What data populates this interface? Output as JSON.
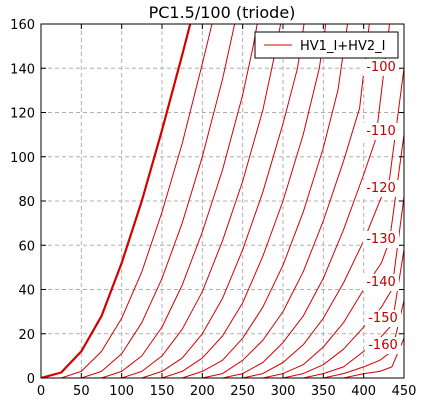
{
  "chart_data": {
    "type": "line",
    "title": "PC1.5/100 (triode)",
    "xlim": [
      0,
      450
    ],
    "ylim": [
      0,
      160
    ],
    "x_ticks": [
      "0",
      "50",
      "100",
      "150",
      "200",
      "250",
      "300",
      "350",
      "400",
      "450"
    ],
    "y_ticks": [
      "0",
      "20",
      "40",
      "60",
      "80",
      "100",
      "120",
      "140",
      "160"
    ],
    "grid": true,
    "legend": {
      "position": "top-right",
      "entries": [
        "HV1_I+HV2_I"
      ]
    },
    "series_color": "#d40000",
    "curve_labels": [
      "-100",
      "-110",
      "-120",
      "-130",
      "-140",
      "-150",
      "-160"
    ],
    "series": [
      {
        "bold": true,
        "values": [
          [
            0,
            0
          ],
          [
            25,
            2.5
          ],
          [
            50,
            12
          ],
          [
            75,
            28
          ],
          [
            100,
            52
          ],
          [
            125,
            80
          ],
          [
            150,
            112
          ],
          [
            175,
            146
          ],
          [
            185,
            160
          ]
        ]
      },
      {
        "values": [
          [
            25,
            0
          ],
          [
            50,
            3
          ],
          [
            75,
            12
          ],
          [
            100,
            27
          ],
          [
            125,
            48
          ],
          [
            150,
            75
          ],
          [
            175,
            106
          ],
          [
            200,
            142
          ],
          [
            212,
            160
          ]
        ]
      },
      {
        "values": [
          [
            50,
            0
          ],
          [
            75,
            3
          ],
          [
            100,
            11
          ],
          [
            125,
            25
          ],
          [
            150,
            45
          ],
          [
            175,
            70
          ],
          [
            200,
            100
          ],
          [
            225,
            135
          ],
          [
            237,
            155
          ],
          [
            240,
            160
          ]
        ]
      },
      {
        "values": [
          [
            75,
            0
          ],
          [
            100,
            3
          ],
          [
            125,
            10
          ],
          [
            150,
            23
          ],
          [
            175,
            42
          ],
          [
            200,
            66
          ],
          [
            225,
            94
          ],
          [
            250,
            128
          ],
          [
            263,
            150
          ],
          [
            268,
            160
          ]
        ]
      },
      {
        "values": [
          [
            100,
            0
          ],
          [
            125,
            3
          ],
          [
            150,
            10
          ],
          [
            175,
            22
          ],
          [
            200,
            39
          ],
          [
            225,
            62
          ],
          [
            250,
            89
          ],
          [
            275,
            121
          ],
          [
            292,
            150
          ],
          [
            297,
            160
          ]
        ]
      },
      {
        "values": [
          [
            125,
            0
          ],
          [
            150,
            3
          ],
          [
            175,
            9
          ],
          [
            200,
            20
          ],
          [
            225,
            36
          ],
          [
            250,
            58
          ],
          [
            275,
            84
          ],
          [
            300,
            115
          ],
          [
            318,
            140
          ],
          [
            326,
            160
          ]
        ]
      },
      {
        "values": [
          [
            150,
            0
          ],
          [
            175,
            3
          ],
          [
            200,
            9
          ],
          [
            225,
            19
          ],
          [
            250,
            34
          ],
          [
            275,
            55
          ],
          [
            300,
            80
          ],
          [
            325,
            110
          ],
          [
            345,
            140
          ],
          [
            353,
            160
          ]
        ]
      },
      {
        "values": [
          [
            175,
            0
          ],
          [
            200,
            3
          ],
          [
            225,
            8
          ],
          [
            250,
            18
          ],
          [
            275,
            32
          ],
          [
            300,
            51
          ],
          [
            325,
            75
          ],
          [
            350,
            104
          ],
          [
            368,
            130
          ],
          [
            380,
            160
          ]
        ]
      },
      {
        "values": [
          [
            200,
            0
          ],
          [
            225,
            2
          ],
          [
            250,
            8
          ],
          [
            275,
            17
          ],
          [
            300,
            30
          ],
          [
            325,
            48
          ],
          [
            350,
            71
          ],
          [
            375,
            98
          ],
          [
            395,
            122
          ],
          [
            407,
            160
          ]
        ]
      },
      {
        "values": [
          [
            225,
            0
          ],
          [
            250,
            2
          ],
          [
            275,
            7
          ],
          [
            300,
            16
          ],
          [
            325,
            28
          ],
          [
            350,
            45
          ],
          [
            375,
            67
          ],
          [
            400,
            92
          ],
          [
            415,
            108
          ],
          [
            432,
            160
          ]
        ]
      },
      {
        "values": [
          [
            250,
            0
          ],
          [
            275,
            2
          ],
          [
            300,
            7
          ],
          [
            325,
            15
          ],
          [
            350,
            27
          ],
          [
            375,
            43
          ],
          [
            400,
            62
          ],
          [
            420,
            80
          ],
          [
            432,
            90
          ],
          [
            450,
            140
          ]
        ]
      },
      {
        "values": [
          [
            275,
            0
          ],
          [
            300,
            2
          ],
          [
            325,
            6
          ],
          [
            350,
            14
          ],
          [
            375,
            25
          ],
          [
            400,
            40
          ],
          [
            422,
            52
          ],
          [
            432,
            62
          ],
          [
            450,
            110
          ]
        ]
      },
      {
        "values": [
          [
            300,
            0
          ],
          [
            325,
            2
          ],
          [
            350,
            6
          ],
          [
            375,
            13
          ],
          [
            400,
            23
          ],
          [
            422,
            32
          ],
          [
            435,
            40
          ],
          [
            450,
            82
          ]
        ]
      },
      {
        "values": [
          [
            325,
            0
          ],
          [
            350,
            2
          ],
          [
            375,
            5
          ],
          [
            400,
            12
          ],
          [
            420,
            18
          ],
          [
            435,
            24
          ],
          [
            450,
            58
          ]
        ]
      },
      {
        "values": [
          [
            350,
            0
          ],
          [
            375,
            2
          ],
          [
            400,
            5
          ],
          [
            420,
            8
          ],
          [
            435,
            12
          ],
          [
            450,
            35
          ]
        ]
      },
      {
        "values": [
          [
            375,
            0
          ],
          [
            400,
            2
          ],
          [
            420,
            3
          ],
          [
            435,
            5
          ],
          [
            450,
            18
          ]
        ]
      }
    ]
  }
}
